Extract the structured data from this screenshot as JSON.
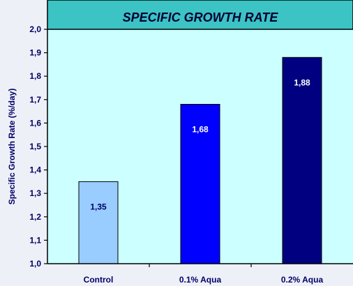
{
  "chart_data": {
    "type": "bar",
    "title": "SPECIFIC GROWTH RATE",
    "xlabel": "",
    "ylabel": "Specific Growth Rate (%/day)",
    "categories": [
      "Control",
      "0.1% Aqua",
      "0.2% Aqua"
    ],
    "values": [
      1.35,
      1.68,
      1.88
    ],
    "value_labels": [
      "1,35",
      "1,68",
      "1,88"
    ],
    "ylim": [
      1.0,
      2.0
    ],
    "yticks": [
      1.0,
      1.1,
      1.2,
      1.3,
      1.4,
      1.5,
      1.6,
      1.7,
      1.8,
      1.9,
      2.0
    ],
    "ytick_labels": [
      "1,0",
      "1,1",
      "1,2",
      "1,3",
      "1,4",
      "1,5",
      "1,6",
      "1,7",
      "1,8",
      "1,9",
      "2,0"
    ],
    "grid": false,
    "legend": "none",
    "colors": {
      "page_background": "#eef0f8",
      "plot_background": "#ccffff",
      "title_background": "#3cc3c3",
      "title_text": "#000033",
      "axis": "#000000",
      "label_text": "#000066",
      "bars": [
        "#99ccff",
        "#0000ff",
        "#000080"
      ],
      "bar_label_text": [
        "#000066",
        "#ffffff",
        "#ffffff"
      ]
    }
  }
}
